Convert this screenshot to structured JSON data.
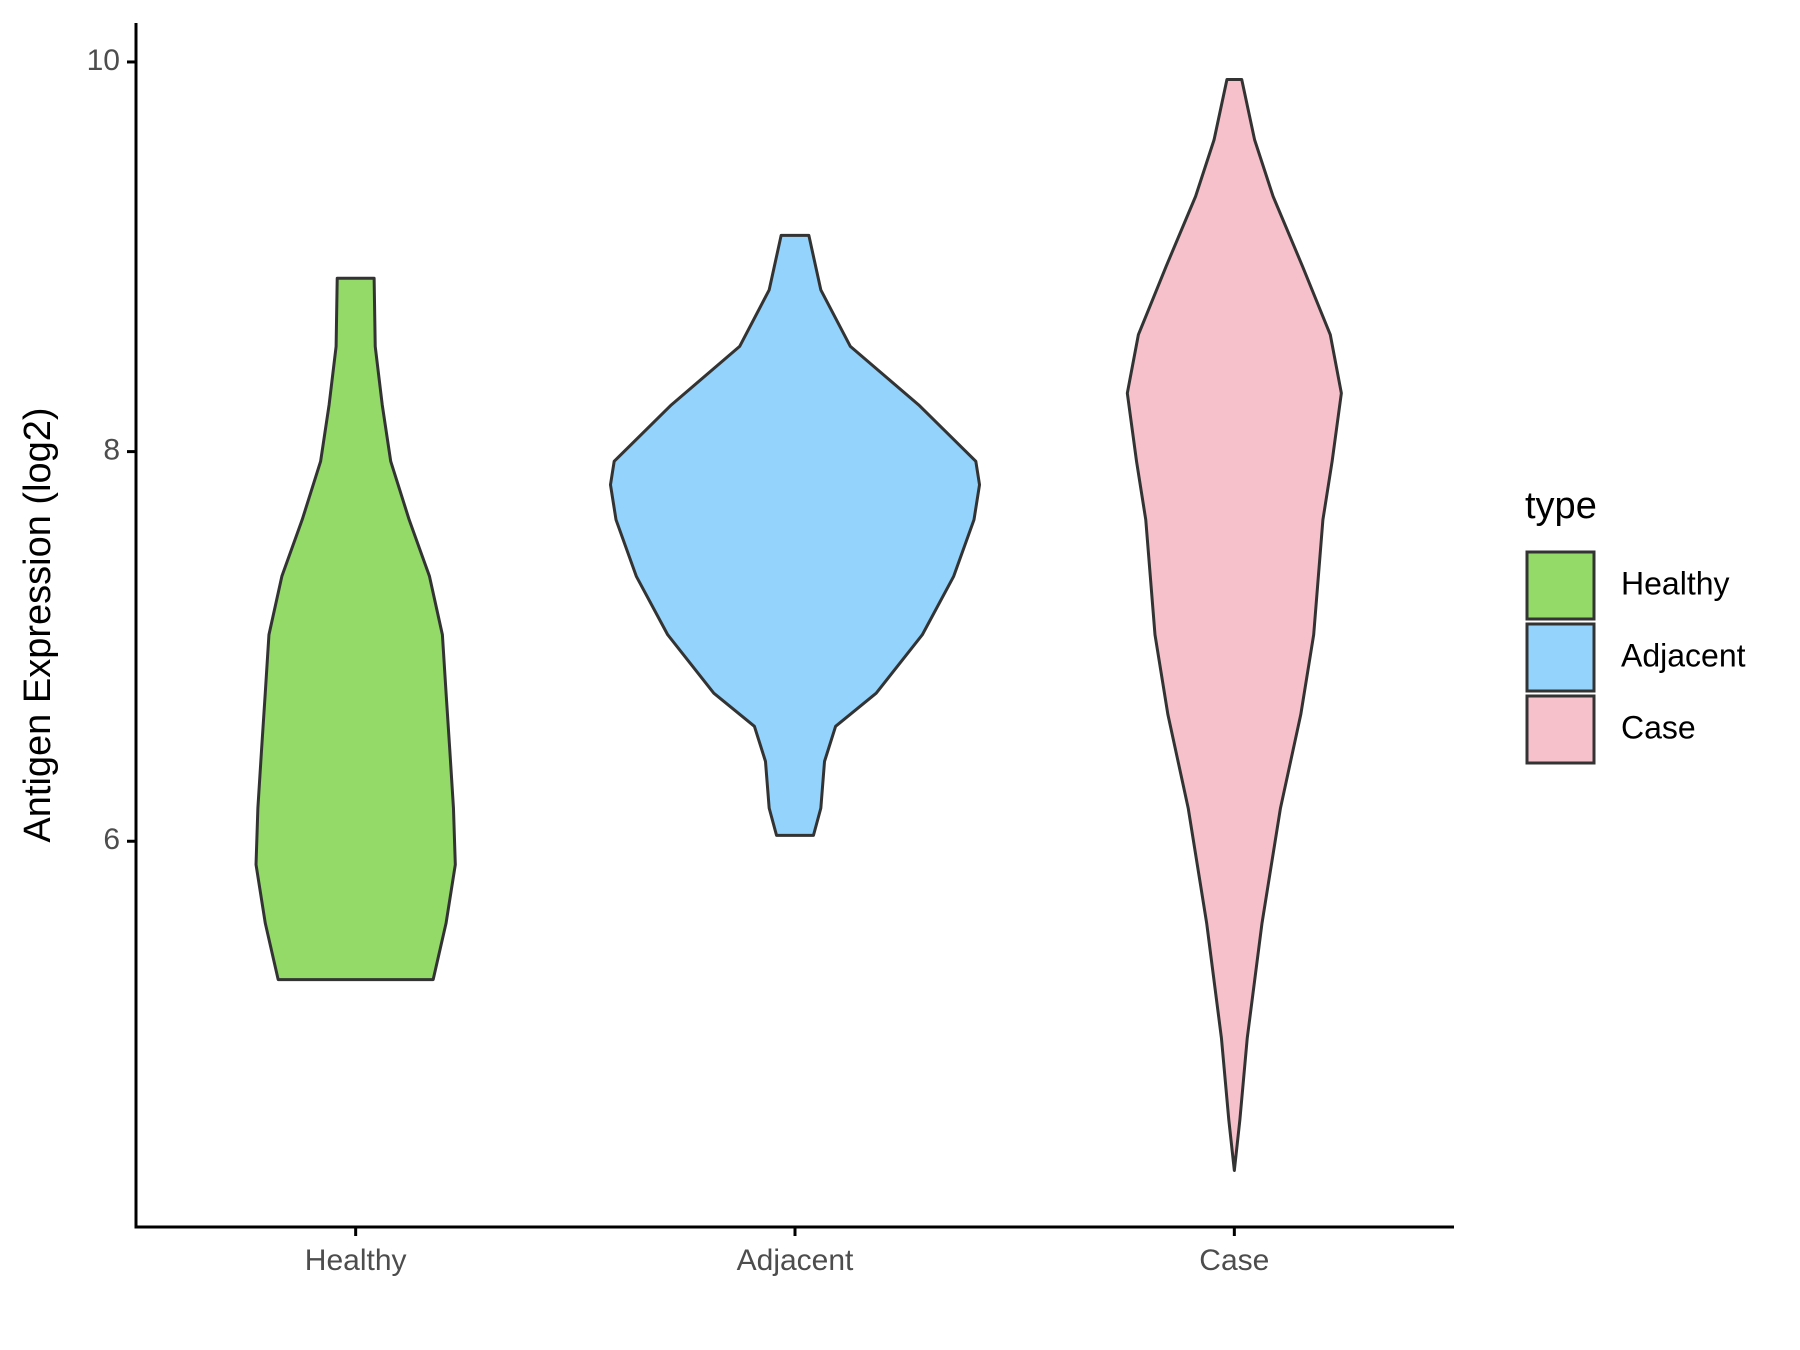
{
  "chart_data": {
    "type": "violin",
    "y_label": "Antigen Expression (log2)",
    "legend_title": "type",
    "categories": [
      "Healthy",
      "Adjacent",
      "Case"
    ],
    "ylim": [
      4.02,
      10.2
    ],
    "yticks": [
      6,
      8,
      10
    ],
    "series": [
      {
        "name": "Healthy",
        "color": "#93da69",
        "y": [
          8.89,
          8.54,
          8.24,
          7.95,
          7.65,
          7.36,
          7.06,
          6.76,
          6.47,
          6.17,
          5.88,
          5.58,
          5.29
        ],
        "half_width": [
          0.1,
          0.106,
          0.144,
          0.19,
          0.29,
          0.4,
          0.47,
          0.49,
          0.51,
          0.53,
          0.54,
          0.49,
          0.42
        ]
      },
      {
        "name": "Adjacent",
        "color": "#93d3fc",
        "y": [
          9.11,
          8.83,
          8.54,
          8.24,
          7.95,
          7.83,
          7.65,
          7.36,
          7.06,
          6.76,
          6.59,
          6.41,
          6.17,
          6.03
        ],
        "half_width": [
          0.075,
          0.14,
          0.3,
          0.67,
          0.98,
          1,
          0.97,
          0.86,
          0.69,
          0.44,
          0.22,
          0.16,
          0.14,
          0.1
        ]
      },
      {
        "name": "Case",
        "color": "#f7c1cc",
        "y": [
          9.91,
          9.6,
          9.31,
          8.95,
          8.6,
          8.3,
          7.95,
          7.65,
          7.06,
          6.65,
          6.17,
          5.58,
          4.99,
          4.57,
          4.31
        ],
        "half_width": [
          0.04,
          0.11,
          0.21,
          0.37,
          0.52,
          0.58,
          0.53,
          0.48,
          0.43,
          0.36,
          0.25,
          0.15,
          0.07,
          0.03,
          0
        ]
      }
    ]
  }
}
